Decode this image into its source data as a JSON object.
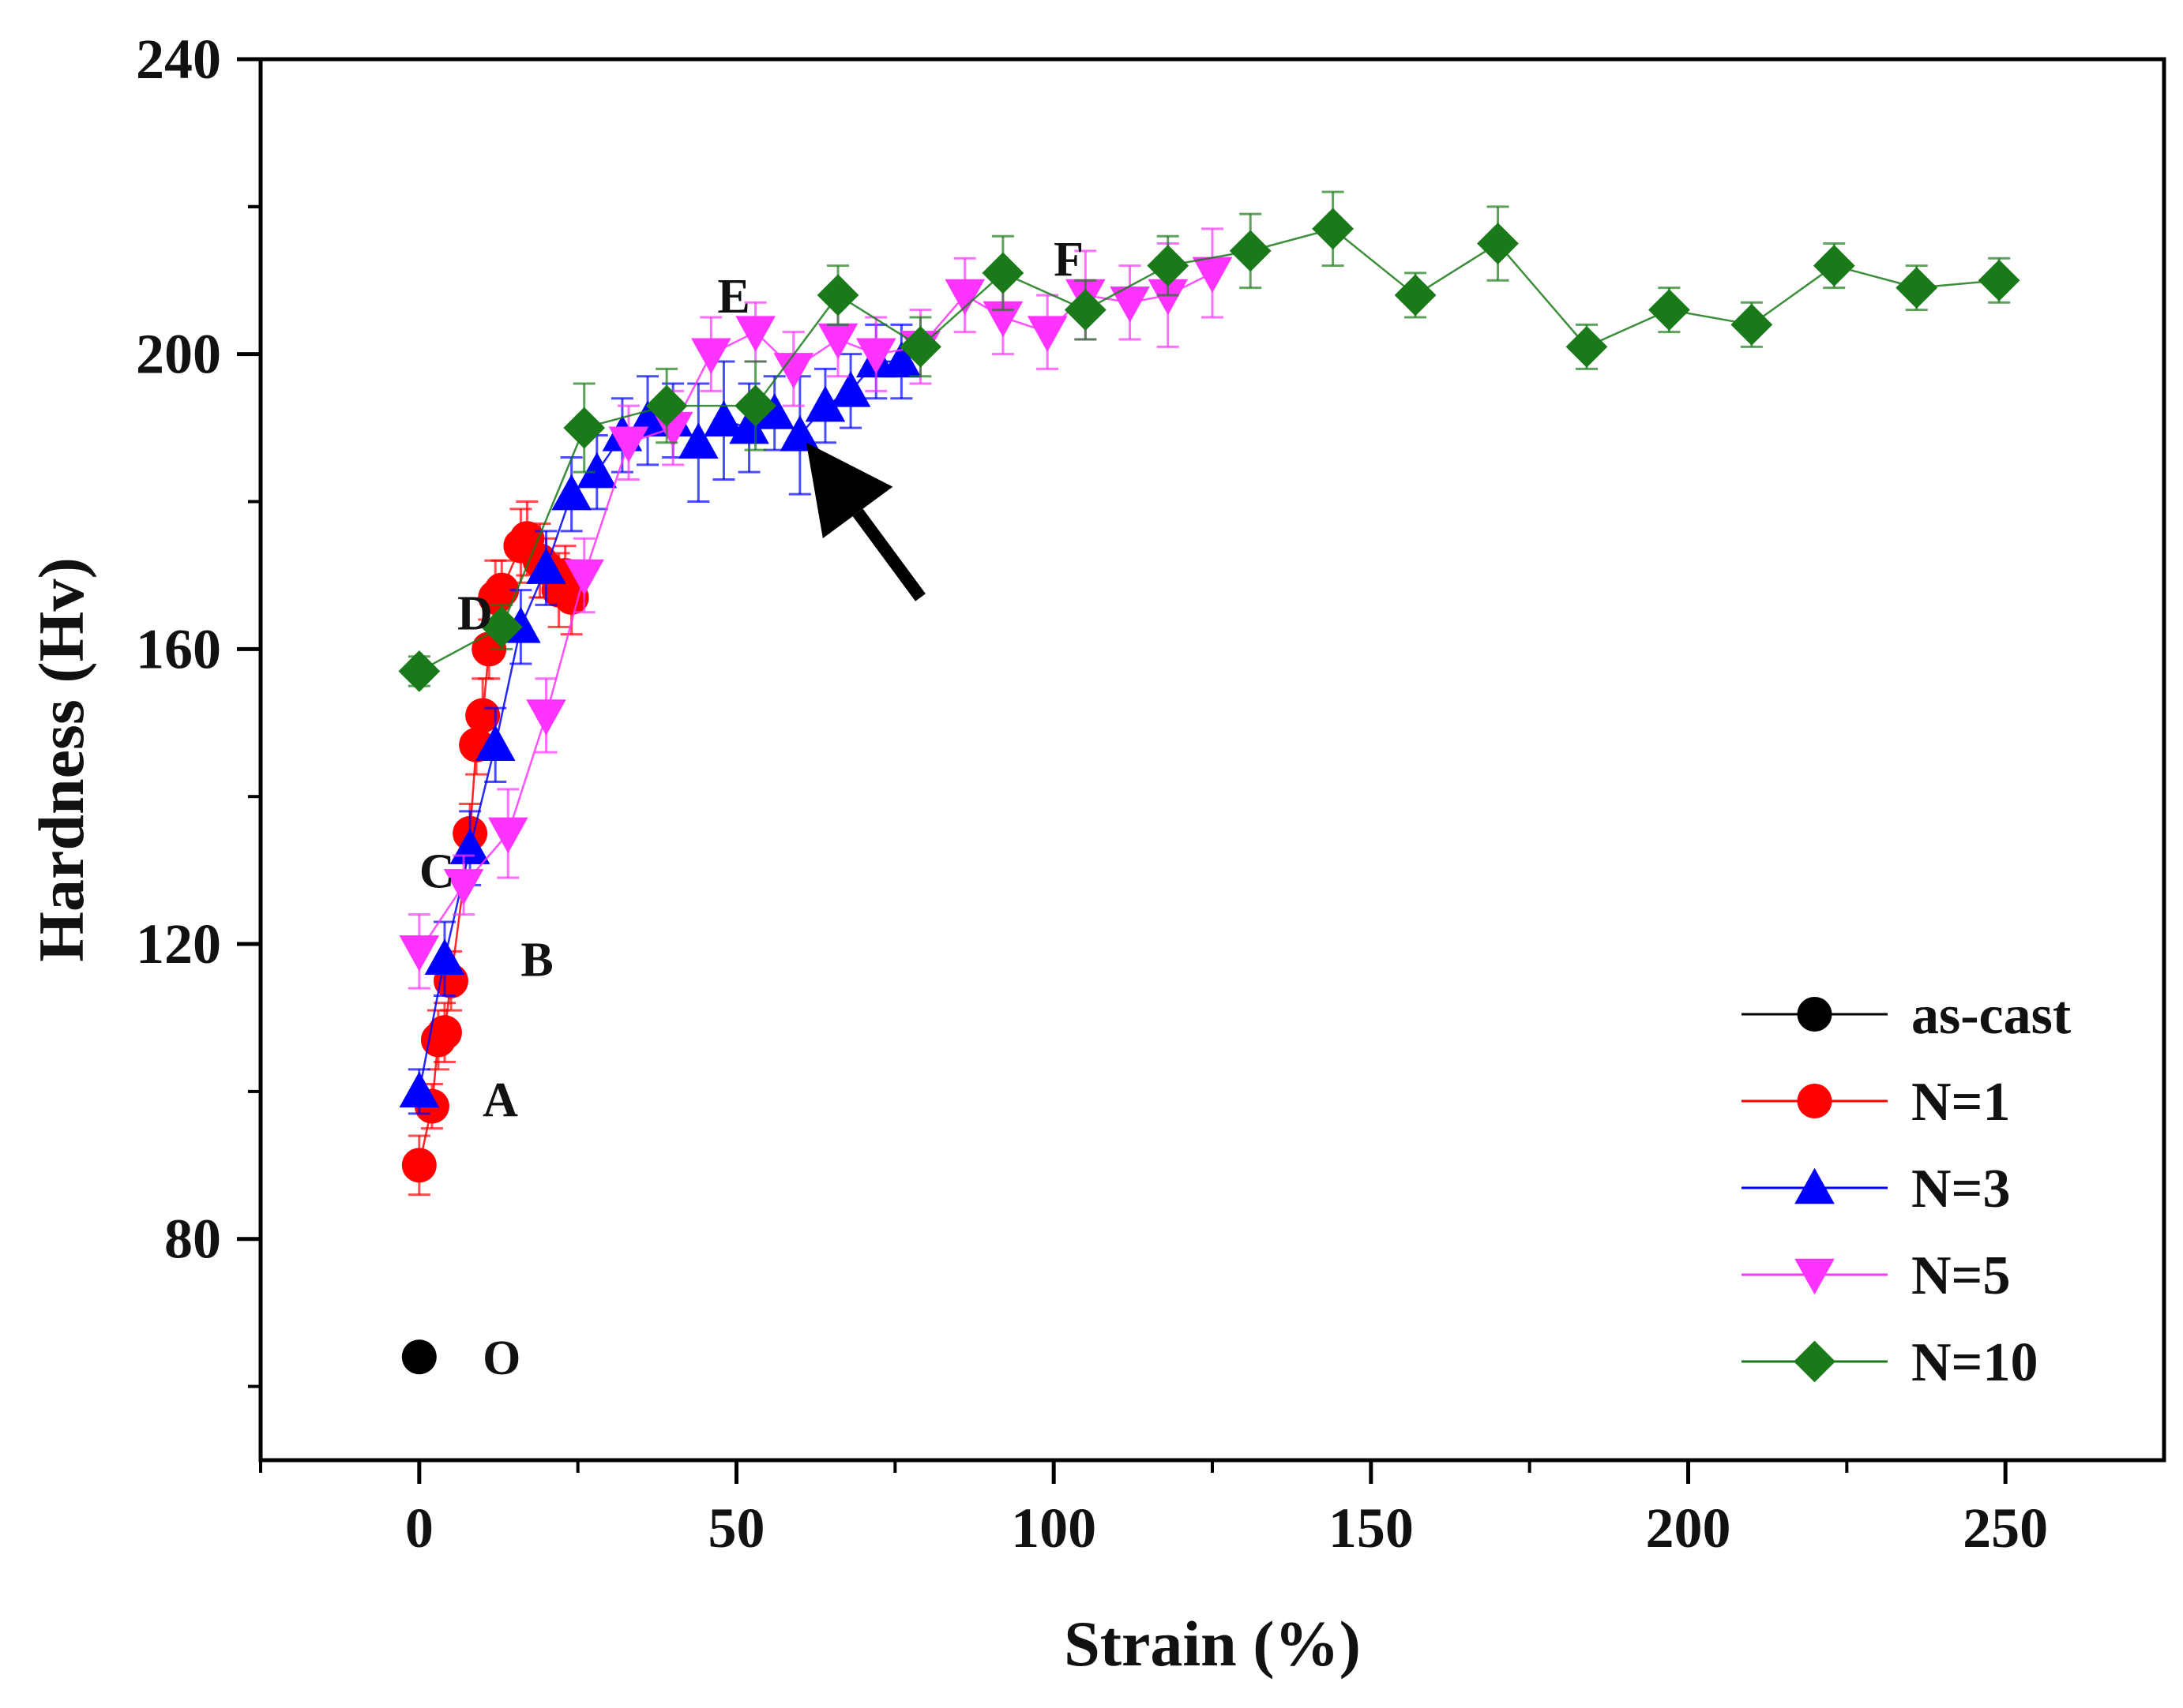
{
  "chart_data": {
    "type": "scatter",
    "title": "",
    "xlabel": "Strain (%)",
    "ylabel": "Hardness (Hv)",
    "xlim": [
      -25,
      275
    ],
    "ylim": [
      50,
      240
    ],
    "xticks": [
      0,
      50,
      100,
      150,
      200,
      250
    ],
    "yticks": [
      80,
      120,
      160,
      200,
      240
    ],
    "xtick_labels": [
      "0",
      "50",
      "100",
      "150",
      "200",
      "250"
    ],
    "ytick_labels": [
      "80",
      "120",
      "160",
      "200",
      "240"
    ],
    "grid": false,
    "legend_position": "bottom-right",
    "series": [
      {
        "name": "as-cast",
        "color": "#000000",
        "marker": "circle",
        "x": [
          0
        ],
        "y": [
          64
        ],
        "err": [
          0
        ]
      },
      {
        "name": "N=1",
        "color": "#ff0000",
        "marker": "circle",
        "x": [
          0,
          2,
          3,
          4,
          5,
          8,
          9,
          10,
          11,
          12,
          13,
          16,
          17,
          19,
          20,
          22,
          23,
          24
        ],
        "y": [
          90,
          98,
          107,
          108,
          115,
          135,
          147,
          151,
          160,
          167,
          168,
          174,
          175,
          172,
          171,
          168,
          170,
          167
        ],
        "err": [
          4,
          3,
          4,
          4,
          4,
          4,
          4,
          5,
          4,
          5,
          4,
          5,
          5,
          5,
          4,
          5,
          4,
          5
        ]
      },
      {
        "name": "N=3",
        "color": "#0000ff",
        "marker": "triangle-up",
        "x": [
          0,
          4,
          8,
          12,
          16,
          20,
          24,
          28,
          32,
          36,
          40,
          44,
          48,
          52,
          56,
          60,
          64,
          68,
          72,
          76
        ],
        "y": [
          100,
          118,
          133,
          147,
          163,
          171,
          181,
          184,
          189,
          191,
          191,
          188,
          191,
          190,
          192,
          189,
          193,
          195,
          199,
          199
        ],
        "err": [
          3,
          5,
          5,
          5,
          5,
          5,
          5,
          5,
          5,
          6,
          5,
          8,
          8,
          6,
          5,
          8,
          5,
          5,
          5,
          5
        ]
      },
      {
        "name": "N=5",
        "color": "#ff33ff",
        "marker": "triangle-down",
        "x": [
          0,
          7,
          14,
          20,
          26,
          33,
          40,
          46,
          53,
          59,
          66,
          72,
          79,
          86,
          92,
          99,
          105,
          112,
          118,
          125
        ],
        "y": [
          119,
          128,
          135,
          151,
          170,
          188,
          190,
          200,
          203,
          198,
          202,
          200,
          201,
          208,
          205,
          203,
          208,
          207,
          208,
          211
        ],
        "err": [
          5,
          4,
          6,
          5,
          5,
          5,
          5,
          5,
          4,
          5,
          5,
          5,
          5,
          5,
          5,
          5,
          6,
          5,
          7,
          6
        ]
      },
      {
        "name": "N=10",
        "color": "#1a7a1a",
        "marker": "diamond",
        "x": [
          0,
          13,
          26,
          39,
          53,
          66,
          79,
          92,
          105,
          118,
          131,
          144,
          157,
          170,
          184,
          197,
          210,
          223,
          236,
          249
        ],
        "y": [
          157,
          163,
          190,
          193,
          193,
          208,
          201,
          211,
          206,
          212,
          214,
          217,
          208,
          215,
          201,
          206,
          204,
          212,
          209,
          210
        ],
        "err": [
          2,
          3,
          6,
          5,
          6,
          4,
          4,
          5,
          4,
          4,
          5,
          5,
          3,
          5,
          3,
          3,
          3,
          3,
          3,
          3
        ]
      }
    ],
    "annotations": [
      {
        "text": "O",
        "x": 10,
        "y": 64
      },
      {
        "text": "A",
        "x": 10,
        "y": 99
      },
      {
        "text": "B",
        "x": 16,
        "y": 118
      },
      {
        "text": "C",
        "x": 0,
        "y": 130
      },
      {
        "text": "D",
        "x": 6,
        "y": 165
      },
      {
        "text": "E",
        "x": 47,
        "y": 208
      },
      {
        "text": "F",
        "x": 100,
        "y": 213
      }
    ],
    "arrow": {
      "to": [
        61,
        188
      ],
      "from": [
        79,
        167
      ]
    }
  }
}
